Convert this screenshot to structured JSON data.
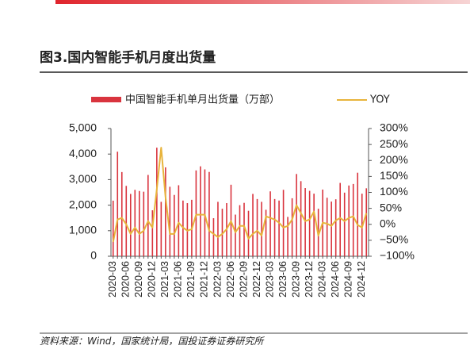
{
  "chart_data": {
    "type": "bar_line",
    "title": "图3.国内智能手机月度出货量",
    "source": "资料来源：Wind，国家统计局，国投证券证券研究所",
    "categories": [
      "2020-03",
      null,
      null,
      "2020-06",
      null,
      null,
      "2020-09",
      null,
      null,
      "2020-12",
      null,
      null,
      "2021-03",
      null,
      null,
      "2021-06",
      null,
      null,
      "2021-09",
      null,
      null,
      "2021-12",
      null,
      null,
      "2022-03",
      null,
      null,
      "2022-06",
      null,
      null,
      "2022-09",
      null,
      null,
      "2022-12",
      null,
      null,
      "2023-03",
      null,
      null,
      "2023-06",
      null,
      null,
      "2023-09",
      null,
      null,
      "2023-12",
      null,
      null,
      "2024-03",
      null,
      null,
      "2024-06",
      null,
      null,
      "2024-09",
      null,
      null,
      "2024-12",
      null
    ],
    "series": [
      {
        "name": "中国智能手机单月出货量（万部）",
        "color": "#d9343e",
        "axis": "y",
        "values": [
          2176,
          4093,
          3296,
          2755,
          2440,
          2599,
          2554,
          2527,
          3183,
          1800,
          4250,
          2130,
          3480,
          2720,
          2400,
          2780,
          2180,
          2080,
          2210,
          3360,
          3520,
          3400,
          3300,
          1490,
          2130,
          1860,
          2080,
          2800,
          1630,
          2000,
          2090,
          1780,
          2440,
          2240,
          2130,
          1820,
          2540,
          2240,
          2180,
          2600,
          1540,
          2270,
          3220,
          2940,
          2670,
          2560,
          2450,
          1860,
          2610,
          2290,
          2140,
          2230,
          2870,
          2490,
          2770,
          2830,
          3270,
          2450,
          2660
        ]
      },
      {
        "name": "YOY",
        "color": "#e8b43c",
        "axis": "y2",
        "values": [
          -55,
          15,
          20,
          0,
          -30,
          -10,
          -30,
          -20,
          10,
          -10,
          110,
          240,
          85,
          -30,
          -30,
          5,
          -10,
          -20,
          -15,
          30,
          30,
          30,
          -20,
          -30,
          -40,
          -30,
          -15,
          10,
          -25,
          -5,
          -5,
          -45,
          -30,
          -20,
          -35,
          25,
          20,
          15,
          5,
          -10,
          -5,
          15,
          60,
          35,
          10,
          15,
          40,
          -35,
          5,
          2,
          -5,
          12,
          20,
          10,
          20,
          25,
          -2,
          -10,
          35
        ]
      }
    ],
    "ylim": [
      0,
      5000
    ],
    "yticks": [
      0,
      {
        "value": 1000,
        "label": "1,000"
      },
      {
        "value": 2000,
        "label": "2,000"
      },
      {
        "value": 3000,
        "label": "3,000"
      },
      {
        "value": 4000,
        "label": "4,000"
      },
      {
        "value": 5000,
        "label": "5,000"
      }
    ],
    "y2lim": [
      -100,
      300
    ],
    "y2ticks": [
      {
        "value": -100,
        "label": "−100%"
      },
      {
        "value": -50,
        "label": "−50%"
      },
      {
        "value": 0,
        "label": "0%"
      },
      {
        "value": 50,
        "label": "50%"
      },
      {
        "value": 100,
        "label": "100%"
      },
      {
        "value": 150,
        "label": "150%"
      },
      {
        "value": 200,
        "label": "200%"
      },
      {
        "value": 250,
        "label": "250%"
      },
      {
        "value": 300,
        "label": "300%"
      }
    ],
    "legend": "top"
  }
}
